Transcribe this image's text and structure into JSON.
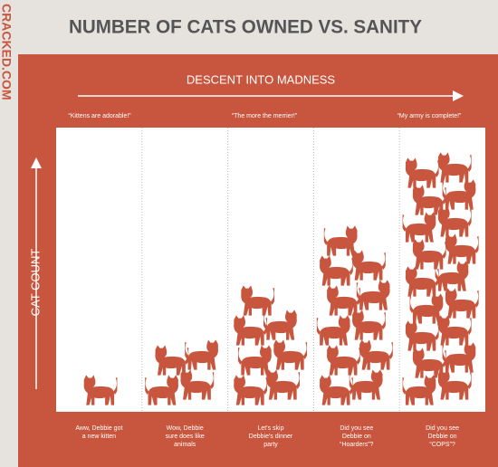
{
  "brand": "CRACKED.COM",
  "title": "NUMBER OF CATS OWNED VS. SANITY",
  "x_axis": {
    "label": "DESCENT INTO MADNESS",
    "quotes": [
      "“Kittens are adorable!”",
      "“The more the merrier!”",
      "“My army is complete!”"
    ]
  },
  "y_axis": {
    "label": "CAT COUNT"
  },
  "captions": [
    [
      "Aww, Debbie got",
      "a new kitten"
    ],
    [
      "Wow, Debbie",
      "sure does like",
      "animals"
    ],
    [
      "Let's skip",
      "Debbie's dinner",
      "party"
    ],
    [
      "Did you see",
      "Debbie on",
      "“Hoarders”?"
    ],
    [
      "Did you see",
      "Debbie on",
      "“COPS”?"
    ]
  ]
}
